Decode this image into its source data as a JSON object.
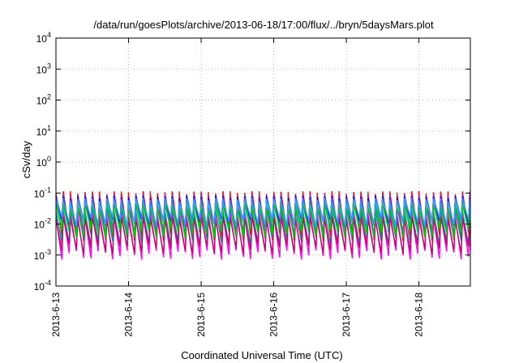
{
  "chart_data": {
    "type": "line",
    "title": "/data/run/goesPlots/archive/2013-06-18/17:00/flux/../bryn/5daysMars.plot",
    "xlabel": "Coordinated Universal Time (UTC)",
    "ylabel": "cSv/day",
    "yscale": "log",
    "ylim": [
      0.0001,
      10000
    ],
    "xlim": [
      "2013-06-13 00:00",
      "2013-06-18 17:00"
    ],
    "grid": true,
    "yticks": [
      {
        "base": "10",
        "exp": "-4",
        "value": 0.0001
      },
      {
        "base": "10",
        "exp": "-3",
        "value": 0.001
      },
      {
        "base": "10",
        "exp": "-2",
        "value": 0.01
      },
      {
        "base": "10",
        "exp": "-1",
        "value": 0.1
      },
      {
        "base": "10",
        "exp": "0",
        "value": 1
      },
      {
        "base": "10",
        "exp": "1",
        "value": 10
      },
      {
        "base": "10",
        "exp": "2",
        "value": 100
      },
      {
        "base": "10",
        "exp": "3",
        "value": 1000
      },
      {
        "base": "10",
        "exp": "4",
        "value": 10000
      }
    ],
    "xticks": [
      "2013-6-13",
      "2013-6-14",
      "2013-6-15",
      "2013-6-16",
      "2013-6-17",
      "2013-6-18"
    ],
    "cycles_per_day": 10,
    "series": [
      {
        "color": "#ff0000",
        "peak": 0.1,
        "trough": 0.004
      },
      {
        "color": "#9933cc",
        "peak": 0.08,
        "trough": 0.006
      },
      {
        "color": "#0000ff",
        "peak": 0.07,
        "trough": 0.01
      },
      {
        "color": "#00cccc",
        "peak": 0.05,
        "trough": 0.008
      },
      {
        "color": "#009999",
        "peak": 0.03,
        "trough": 0.003
      },
      {
        "color": "#ff00ff",
        "peak": 0.02,
        "trough": 0.001
      },
      {
        "color": "#cc0066",
        "peak": 0.015,
        "trough": 0.0015
      },
      {
        "color": "#00cc00",
        "peak": 0.04,
        "trough": 0.005
      },
      {
        "color": "#3399ff",
        "peak": 0.06,
        "trough": 0.012
      }
    ]
  }
}
